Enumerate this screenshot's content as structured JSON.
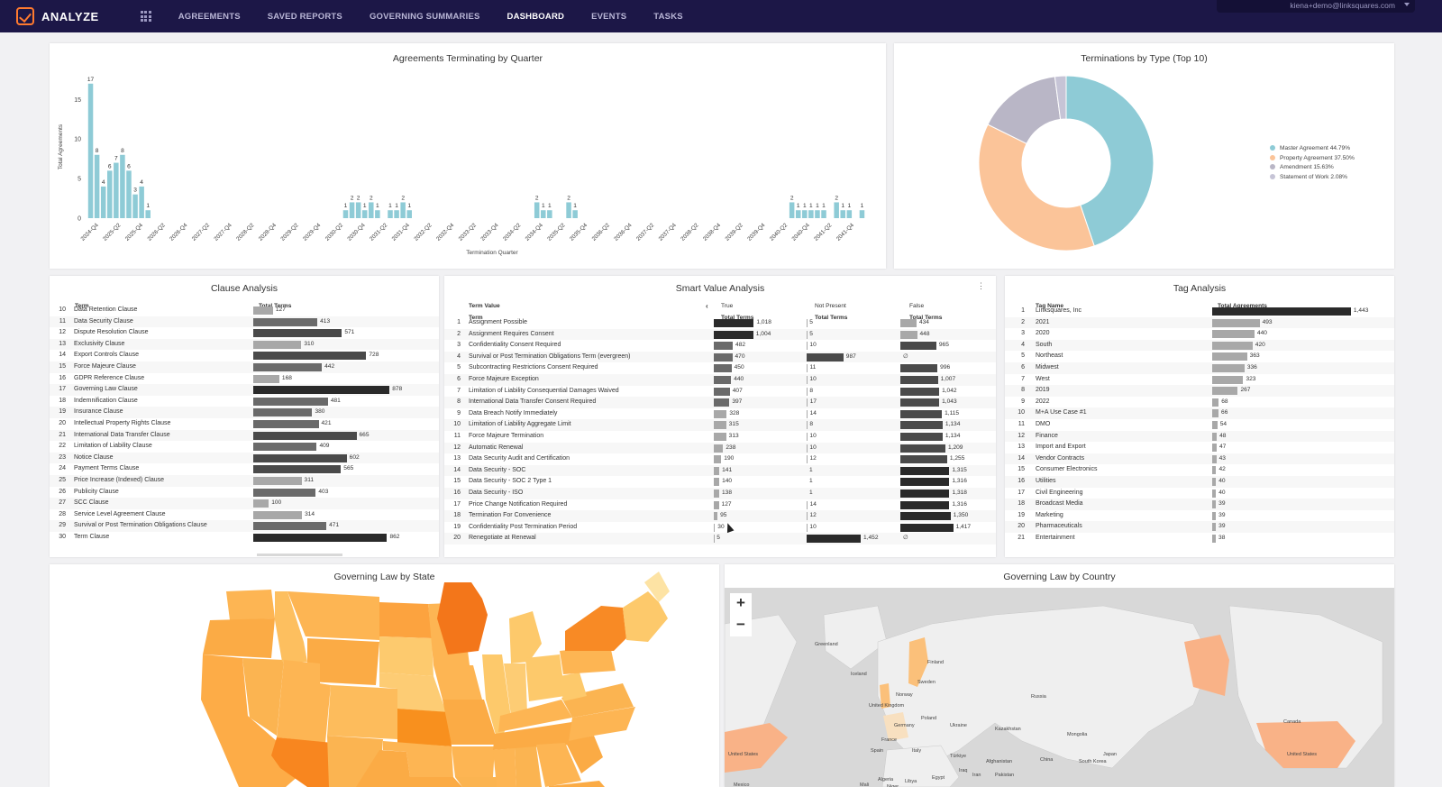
{
  "nav": {
    "app_name": "ANALYZE",
    "items": [
      "AGREEMENTS",
      "SAVED REPORTS",
      "GOVERNING SUMMARIES",
      "DASHBOARD",
      "EVENTS",
      "TASKS"
    ],
    "active": "DASHBOARD",
    "user_email": "kiena+demo@linksquares.com"
  },
  "colors": {
    "nav_bg": "#1c1747",
    "accent": "#ff7a2f",
    "bar_teal": "#8ecbd6",
    "pie_teal": "#8ecbd6",
    "pie_peach": "#fbc499",
    "pie_gray": "#b9b6c6",
    "pie_lav": "#c6c4d6",
    "tbl_bar_dark": "#2a2a2a",
    "tbl_bar_mid": "#6a6a6a",
    "tbl_bar_light": "#a8a8a8"
  },
  "quarter_chart": {
    "title": "Agreements Terminating by Quarter",
    "ylabel": "Total Agreements",
    "xlabel": "Termination Quarter"
  },
  "chart_data": [
    {
      "type": "bar",
      "title": "Agreements Terminating by Quarter",
      "xlabel": "Termination Quarter",
      "ylabel": "Total Agreements",
      "ylim": [
        0,
        18
      ],
      "yticks": [
        0,
        5,
        10,
        15
      ],
      "grid": false,
      "x_tick_labels": [
        "2024-Q4",
        "2025-Q2",
        "2025-Q4",
        "2026-Q2",
        "2026-Q4",
        "2027-Q2",
        "2027-Q4",
        "2028-Q2",
        "2028-Q4",
        "2029-Q2",
        "2029-Q4",
        "2030-Q2",
        "2030-Q4",
        "2031-Q2",
        "2031-Q4",
        "2032-Q2",
        "2032-Q4",
        "2033-Q2",
        "2033-Q4",
        "2034-Q2",
        "2034-Q4",
        "2035-Q2",
        "2035-Q4",
        "2036-Q2",
        "2036-Q4",
        "2037-Q2",
        "2037-Q4",
        "2038-Q2",
        "2038-Q4",
        "2039-Q2",
        "2039-Q4",
        "2040-Q2",
        "2040-Q4",
        "2041-Q2",
        "2041-Q4"
      ],
      "values": [
        17,
        8,
        4,
        6,
        7,
        8,
        6,
        3,
        4,
        1,
        0,
        0,
        0,
        0,
        0,
        0,
        0,
        0,
        0,
        0,
        0,
        0,
        0,
        0,
        0,
        0,
        0,
        0,
        0,
        0,
        0,
        0,
        0,
        0,
        0,
        0,
        0,
        0,
        0,
        0,
        1,
        2,
        2,
        1,
        2,
        1,
        0,
        1,
        1,
        2,
        1,
        0,
        0,
        0,
        0,
        0,
        0,
        0,
        0,
        0,
        0,
        0,
        0,
        0,
        0,
        0,
        0,
        0,
        0,
        0,
        2,
        1,
        1,
        0,
        0,
        2,
        1,
        0,
        0,
        0,
        0,
        0,
        0,
        0,
        0,
        0,
        0,
        0,
        0,
        0,
        0,
        0,
        0,
        0,
        0,
        0,
        0,
        0,
        0,
        0,
        0,
        0,
        0,
        0,
        0,
        0,
        0,
        0,
        0,
        0,
        2,
        1,
        1,
        1,
        1,
        1,
        0,
        2,
        1,
        1,
        0,
        1
      ]
    },
    {
      "type": "pie",
      "title": "Terminations by Type (Top 10)",
      "legend_position": "right",
      "slices": [
        {
          "name": "Master Agreement",
          "pct": 44.79,
          "label": "Master Agreement 44.79%"
        },
        {
          "name": "Property Agreement",
          "pct": 37.5,
          "label": "Property Agreement 37.50%"
        },
        {
          "name": "Amendment",
          "pct": 15.63,
          "label": "Amendment 15.63%"
        },
        {
          "name": "Statement of Work",
          "pct": 2.08,
          "label": "Statement of Work 2.08%"
        }
      ]
    }
  ],
  "clause": {
    "title": "Clause Analysis",
    "col_term": "Term",
    "col_total": "Total Terms",
    "max": 900,
    "rows": [
      {
        "idx": "10",
        "term": "Data Retention Clause",
        "value": "127",
        "n": 127
      },
      {
        "idx": "11",
        "term": "Data Security Clause",
        "value": "413",
        "n": 413
      },
      {
        "idx": "12",
        "term": "Dispute Resolution Clause",
        "value": "571",
        "n": 571
      },
      {
        "idx": "13",
        "term": "Exclusivity Clause",
        "value": "310",
        "n": 310
      },
      {
        "idx": "14",
        "term": "Export Controls Clause",
        "value": "728",
        "n": 728
      },
      {
        "idx": "15",
        "term": "Force Majeure Clause",
        "value": "442",
        "n": 442
      },
      {
        "idx": "16",
        "term": "GDPR Reference Clause",
        "value": "168",
        "n": 168
      },
      {
        "idx": "17",
        "term": "Governing Law Clause",
        "value": "878",
        "n": 878
      },
      {
        "idx": "18",
        "term": "Indemnification Clause",
        "value": "481",
        "n": 481
      },
      {
        "idx": "19",
        "term": "Insurance Clause",
        "value": "380",
        "n": 380
      },
      {
        "idx": "20",
        "term": "Intellectual Property Rights Clause",
        "value": "421",
        "n": 421
      },
      {
        "idx": "21",
        "term": "International Data Transfer Clause",
        "value": "665",
        "n": 665
      },
      {
        "idx": "22",
        "term": "Limitation of Liability Clause",
        "value": "409",
        "n": 409
      },
      {
        "idx": "23",
        "term": "Notice Clause",
        "value": "602",
        "n": 602
      },
      {
        "idx": "24",
        "term": "Payment Terms Clause",
        "value": "565",
        "n": 565
      },
      {
        "idx": "25",
        "term": "Price Increase (Indexed) Clause",
        "value": "311",
        "n": 311
      },
      {
        "idx": "26",
        "term": "Publicity Clause",
        "value": "403",
        "n": 403
      },
      {
        "idx": "27",
        "term": "SCC Clause",
        "value": "100",
        "n": 100
      },
      {
        "idx": "28",
        "term": "Service Level Agreement Clause",
        "value": "314",
        "n": 314
      },
      {
        "idx": "29",
        "term": "Survival or Post Termination Obligations Clause",
        "value": "471",
        "n": 471
      },
      {
        "idx": "30",
        "term": "Term Clause",
        "value": "862",
        "n": 862
      }
    ]
  },
  "smart": {
    "title": "Smart Value Analysis",
    "col_term_value": "Term Value",
    "col_term": "Term",
    "col_true": "True",
    "col_not_present": "Not Present",
    "col_false": "False",
    "col_total": "Total Terms",
    "max_true": 1100,
    "max_np": 1500,
    "max_false": 1500,
    "rows": [
      {
        "idx": "1",
        "term": "Assignment Possible",
        "t": "1,018",
        "tn": 1018,
        "np": "5",
        "npn": 5,
        "f": "434",
        "fn": 434
      },
      {
        "idx": "2",
        "term": "Assignment Requires Consent",
        "t": "1,004",
        "tn": 1004,
        "np": "5",
        "npn": 5,
        "f": "448",
        "fn": 448
      },
      {
        "idx": "3",
        "term": "Confidentiality Consent Required",
        "t": "482",
        "tn": 482,
        "np": "10",
        "npn": 10,
        "f": "965",
        "fn": 965
      },
      {
        "idx": "4",
        "term": "Survival or Post Termination Obligations Term (evergreen)",
        "t": "470",
        "tn": 470,
        "np": "987",
        "npn": 987,
        "f": "∅",
        "fn": 0
      },
      {
        "idx": "5",
        "term": "Subcontracting Restrictions Consent Required",
        "t": "450",
        "tn": 450,
        "np": "11",
        "npn": 11,
        "f": "996",
        "fn": 996
      },
      {
        "idx": "6",
        "term": "Force Majeure Exception",
        "t": "440",
        "tn": 440,
        "np": "10",
        "npn": 10,
        "f": "1,007",
        "fn": 1007
      },
      {
        "idx": "7",
        "term": "Limitation of Liability Consequential Damages Waived",
        "t": "407",
        "tn": 407,
        "np": "8",
        "npn": 8,
        "f": "1,042",
        "fn": 1042
      },
      {
        "idx": "8",
        "term": "International Data Transfer Consent Required",
        "t": "397",
        "tn": 397,
        "np": "17",
        "npn": 17,
        "f": "1,043",
        "fn": 1043
      },
      {
        "idx": "9",
        "term": "Data Breach Notify Immediately",
        "t": "328",
        "tn": 328,
        "np": "14",
        "npn": 14,
        "f": "1,115",
        "fn": 1115
      },
      {
        "idx": "10",
        "term": "Limitation of Liability Aggregate Limit",
        "t": "315",
        "tn": 315,
        "np": "8",
        "npn": 8,
        "f": "1,134",
        "fn": 1134
      },
      {
        "idx": "11",
        "term": "Force Majeure Termination",
        "t": "313",
        "tn": 313,
        "np": "10",
        "npn": 10,
        "f": "1,134",
        "fn": 1134
      },
      {
        "idx": "12",
        "term": "Automatic Renewal",
        "t": "238",
        "tn": 238,
        "np": "10",
        "npn": 10,
        "f": "1,209",
        "fn": 1209
      },
      {
        "idx": "13",
        "term": "Data Security Audit and Certification",
        "t": "190",
        "tn": 190,
        "np": "12",
        "npn": 12,
        "f": "1,255",
        "fn": 1255
      },
      {
        "idx": "14",
        "term": "Data Security - SOC",
        "t": "141",
        "tn": 141,
        "np": "1",
        "npn": 1,
        "f": "1,315",
        "fn": 1315
      },
      {
        "idx": "15",
        "term": "Data Security - SOC 2 Type 1",
        "t": "140",
        "tn": 140,
        "np": "1",
        "npn": 1,
        "f": "1,316",
        "fn": 1316
      },
      {
        "idx": "16",
        "term": "Data Security - ISO",
        "t": "138",
        "tn": 138,
        "np": "1",
        "npn": 1,
        "f": "1,318",
        "fn": 1318
      },
      {
        "idx": "17",
        "term": "Price Change Notification Required",
        "t": "127",
        "tn": 127,
        "np": "14",
        "npn": 14,
        "f": "1,316",
        "fn": 1316
      },
      {
        "idx": "18",
        "term": "Termination For Convenience",
        "t": "95",
        "tn": 95,
        "np": "12",
        "npn": 12,
        "f": "1,350",
        "fn": 1350
      },
      {
        "idx": "19",
        "term": "Confidentiality Post Termination Period",
        "t": "30",
        "tn": 30,
        "np": "10",
        "npn": 10,
        "f": "1,417",
        "fn": 1417
      },
      {
        "idx": "20",
        "term": "Renegotiate at Renewal",
        "t": "5",
        "tn": 5,
        "np": "1,452",
        "npn": 1452,
        "f": "∅",
        "fn": 0
      }
    ]
  },
  "tags": {
    "title": "Tag Analysis",
    "col_name": "Tag Name",
    "col_total": "Total Agreements",
    "max": 1500,
    "rows": [
      {
        "idx": "1",
        "name": "Linksquares, Inc",
        "value": "1,443",
        "n": 1443
      },
      {
        "idx": "2",
        "name": "2021",
        "value": "493",
        "n": 493
      },
      {
        "idx": "3",
        "name": "2020",
        "value": "440",
        "n": 440
      },
      {
        "idx": "4",
        "name": "South",
        "value": "420",
        "n": 420
      },
      {
        "idx": "5",
        "name": "Northeast",
        "value": "363",
        "n": 363
      },
      {
        "idx": "6",
        "name": "Midwest",
        "value": "336",
        "n": 336
      },
      {
        "idx": "7",
        "name": "West",
        "value": "323",
        "n": 323
      },
      {
        "idx": "8",
        "name": "2019",
        "value": "267",
        "n": 267
      },
      {
        "idx": "9",
        "name": "2022",
        "value": "68",
        "n": 68
      },
      {
        "idx": "10",
        "name": "M+A Use Case #1",
        "value": "66",
        "n": 66
      },
      {
        "idx": "11",
        "name": "DMO",
        "value": "54",
        "n": 54
      },
      {
        "idx": "12",
        "name": "Finance",
        "value": "48",
        "n": 48
      },
      {
        "idx": "13",
        "name": "Import and Export",
        "value": "47",
        "n": 47
      },
      {
        "idx": "14",
        "name": "Vendor Contracts",
        "value": "43",
        "n": 43
      },
      {
        "idx": "15",
        "name": "Consumer Electronics",
        "value": "42",
        "n": 42
      },
      {
        "idx": "16",
        "name": "Utilities",
        "value": "40",
        "n": 40
      },
      {
        "idx": "17",
        "name": "Civil Engineering",
        "value": "40",
        "n": 40
      },
      {
        "idx": "18",
        "name": "Broadcast Media",
        "value": "39",
        "n": 39
      },
      {
        "idx": "19",
        "name": "Marketing",
        "value": "39",
        "n": 39
      },
      {
        "idx": "20",
        "name": "Pharmaceuticals",
        "value": "39",
        "n": 39
      },
      {
        "idx": "21",
        "name": "Entertainment",
        "value": "38",
        "n": 38
      }
    ]
  },
  "state_map": {
    "title": "Governing Law by State"
  },
  "country_map": {
    "title": "Governing Law by Country",
    "zoom_in": "+",
    "zoom_out": "−",
    "labels": [
      "Greenland",
      "Iceland",
      "Norway",
      "Sweden",
      "Finland",
      "United Kingdom",
      "Germany",
      "Poland",
      "Ukraine",
      "France",
      "Spain",
      "Italy",
      "Türkiye",
      "Algeria",
      "Libya",
      "Egypt",
      "Kazakhstan",
      "Russia",
      "Mongolia",
      "China",
      "Japan",
      "South Korea",
      "Afghanistan",
      "Pakistan",
      "Iran",
      "Iraq",
      "Mali",
      "Niger",
      "Canada",
      "United States",
      "United States",
      "Mexico"
    ]
  }
}
